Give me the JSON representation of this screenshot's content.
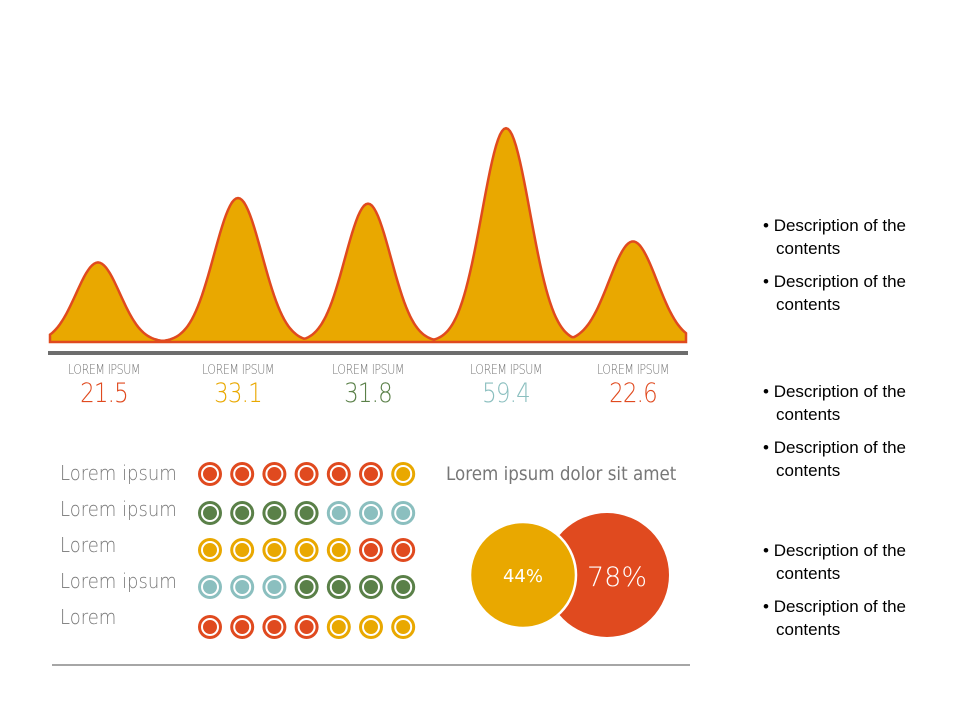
{
  "chart_data": {
    "type": "area",
    "categories": [
      "LOREM IPSUM",
      "LOREM IPSUM",
      "LOREM IPSUM",
      "LOREM IPSUM",
      "LOREM IPSUM"
    ],
    "values": [
      21.5,
      33.1,
      31.8,
      59.4,
      22.6
    ],
    "value_labels": [
      "21.5",
      "33.1",
      "31.8",
      "59.4",
      "22.6"
    ],
    "value_colors": [
      "#E04A1F",
      "#E9A800",
      "#5A8048",
      "#8BBFBF",
      "#E04A1F"
    ],
    "fill": "#E9A800",
    "stroke": "#E04A1F"
  },
  "dot_matrix": {
    "rows": [
      {
        "label": "Lorem ipsum",
        "dots": [
          "red",
          "red",
          "red",
          "red",
          "red",
          "red",
          "yellow"
        ]
      },
      {
        "label": "Lorem ipsum",
        "dots": [
          "green",
          "green",
          "green",
          "green",
          "teal",
          "teal",
          "teal"
        ]
      },
      {
        "label": "Lorem",
        "dots": [
          "yellow",
          "yellow",
          "yellow",
          "yellow",
          "yellow",
          "red",
          "red"
        ]
      },
      {
        "label": "Lorem ipsum",
        "dots": [
          "teal",
          "teal",
          "teal",
          "green",
          "green",
          "green",
          "green"
        ]
      },
      {
        "label": "Lorem",
        "dots": [
          "red",
          "red",
          "red",
          "red",
          "yellow",
          "yellow",
          "yellow"
        ]
      }
    ],
    "colors": {
      "red": "#E04A1F",
      "yellow": "#E9A800",
      "green": "#5A8048",
      "teal": "#8BBFBF"
    }
  },
  "venn": {
    "title": "Lorem ipsum dolor sit amet",
    "left": {
      "label": "44%",
      "value": 44,
      "color": "#E9A800"
    },
    "right": {
      "label": "78%",
      "value": 78,
      "color": "#E04A1F"
    }
  },
  "bullets": [
    "Description of the contents",
    "Description of the contents",
    "Description of the contents",
    "Description of the contents",
    "Description of the contents",
    "Description of the contents"
  ]
}
